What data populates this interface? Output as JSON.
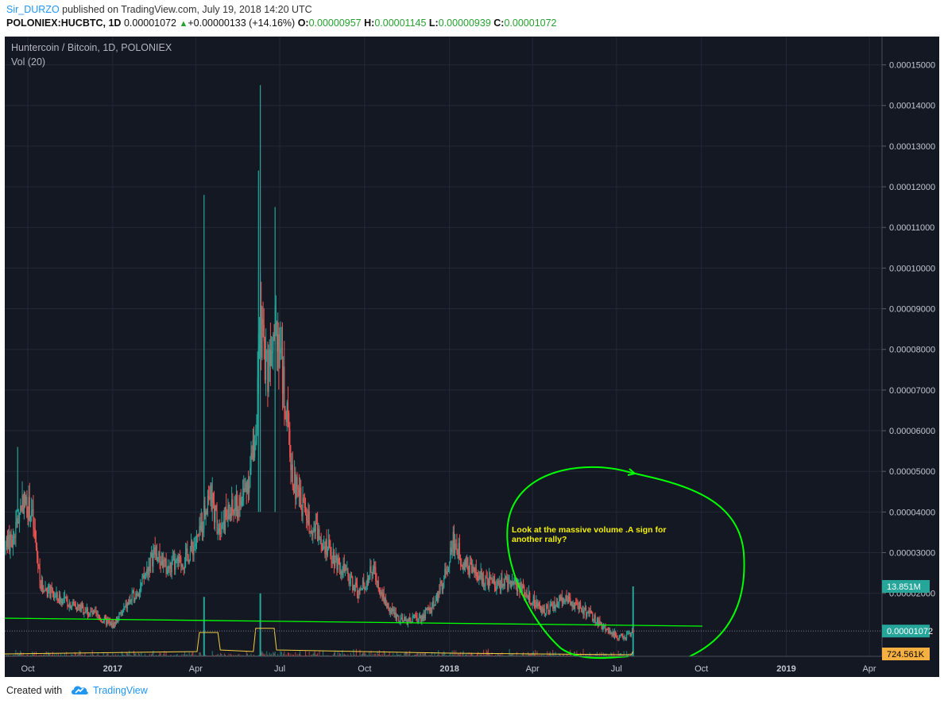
{
  "header": {
    "author": "Sir_DURZO",
    "published": "published on TradingView.com, July 19, 2018 14:20 UTC",
    "symbol": "POLONIEX:HUCBTC, 1D",
    "price": "0.00001072",
    "change": "+0.00000133 (+14.16%)",
    "o_label": "O:",
    "o": "0.00000957",
    "h_label": "H:",
    "h": "0.00001145",
    "l_label": "L:",
    "l": "0.00000939",
    "c_label": "C:",
    "c": "0.00001072",
    "up_icon": "triangle-up-icon"
  },
  "chart_data": {
    "type": "candlestick",
    "title": "Huntercoin / Bitcoin, 1D, POLONIEX",
    "indicator": "Vol (20)",
    "y_axis": {
      "ticks": [
        "0.00015000",
        "0.00014000",
        "0.00013000",
        "0.00012000",
        "0.00011000",
        "0.00010000",
        "0.00009000",
        "0.00008000",
        "0.00007000",
        "0.00006000",
        "0.00005000",
        "0.00004000",
        "0.00003000",
        "0.00002000"
      ],
      "ylim": [
        4.5e-06,
        0.000155
      ]
    },
    "x_axis": {
      "ticks": [
        "Oct",
        "2017",
        "Apr",
        "Jul",
        "Oct",
        "2018",
        "Apr",
        "Jul",
        "Oct",
        "2019",
        "Apr"
      ],
      "bold_ticks": [
        "2017",
        "2018",
        "2019"
      ]
    },
    "price_path": [
      {
        "date": "2016-09-01",
        "close": 3e-05
      },
      {
        "date": "2016-09-15",
        "close": 3.3e-05
      },
      {
        "date": "2016-09-25",
        "close": 4.3e-05
      },
      {
        "date": "2016-10-05",
        "close": 4e-05
      },
      {
        "date": "2016-10-15",
        "close": 2.2e-05
      },
      {
        "date": "2016-11-01",
        "close": 1.9e-05
      },
      {
        "date": "2016-12-01",
        "close": 1.6e-05
      },
      {
        "date": "2017-01-01",
        "close": 1.2e-05
      },
      {
        "date": "2017-02-01",
        "close": 2.2e-05
      },
      {
        "date": "2017-02-15",
        "close": 3e-05
      },
      {
        "date": "2017-03-01",
        "close": 2.6e-05
      },
      {
        "date": "2017-03-20",
        "close": 2.8e-05
      },
      {
        "date": "2017-04-05",
        "close": 3.4e-05
      },
      {
        "date": "2017-04-15",
        "close": 4.5e-05
      },
      {
        "date": "2017-04-25",
        "close": 3.7e-05
      },
      {
        "date": "2017-05-05",
        "close": 3.9e-05
      },
      {
        "date": "2017-05-20",
        "close": 4.2e-05
      },
      {
        "date": "2017-05-30",
        "close": 5e-05
      },
      {
        "date": "2017-06-05",
        "close": 6e-05
      },
      {
        "date": "2017-06-10",
        "close": 8.5e-05
      },
      {
        "date": "2017-06-18",
        "close": 7.5e-05
      },
      {
        "date": "2017-06-25",
        "close": 9e-05
      },
      {
        "date": "2017-07-01",
        "close": 8e-05
      },
      {
        "date": "2017-07-08",
        "close": 6.5e-05
      },
      {
        "date": "2017-07-15",
        "close": 4.8e-05
      },
      {
        "date": "2017-08-01",
        "close": 3.8e-05
      },
      {
        "date": "2017-08-20",
        "close": 3.2e-05
      },
      {
        "date": "2017-09-10",
        "close": 2.5e-05
      },
      {
        "date": "2017-09-25",
        "close": 2e-05
      },
      {
        "date": "2017-10-10",
        "close": 2.6e-05
      },
      {
        "date": "2017-10-25",
        "close": 1.7e-05
      },
      {
        "date": "2017-11-10",
        "close": 1.3e-05
      },
      {
        "date": "2017-12-01",
        "close": 1.4e-05
      },
      {
        "date": "2017-12-15",
        "close": 1.7e-05
      },
      {
        "date": "2017-12-28",
        "close": 2.5e-05
      },
      {
        "date": "2018-01-05",
        "close": 3.3e-05
      },
      {
        "date": "2018-01-15",
        "close": 2.8e-05
      },
      {
        "date": "2018-02-01",
        "close": 2.4e-05
      },
      {
        "date": "2018-02-20",
        "close": 2.2e-05
      },
      {
        "date": "2018-03-10",
        "close": 2.3e-05
      },
      {
        "date": "2018-03-25",
        "close": 2e-05
      },
      {
        "date": "2018-04-10",
        "close": 1.6e-05
      },
      {
        "date": "2018-04-25",
        "close": 1.7e-05
      },
      {
        "date": "2018-05-05",
        "close": 1.9e-05
      },
      {
        "date": "2018-05-20",
        "close": 1.7e-05
      },
      {
        "date": "2018-06-05",
        "close": 1.4e-05
      },
      {
        "date": "2018-06-20",
        "close": 1.1e-05
      },
      {
        "date": "2018-07-05",
        "close": 9.3e-06
      },
      {
        "date": "2018-07-15",
        "close": 9.6e-06
      },
      {
        "date": "2018-07-19",
        "close": 1.072e-05
      }
    ],
    "spike_highs": [
      {
        "date": "2017-04-10",
        "high": 0.000118
      },
      {
        "date": "2017-06-08",
        "high": 0.000124
      },
      {
        "date": "2017-06-10",
        "high": 0.000145
      },
      {
        "date": "2017-06-26",
        "high": 0.000115
      },
      {
        "date": "2016-09-20",
        "high": 5.6e-05
      }
    ],
    "volume": {
      "label": "Vol (20)",
      "spikes": [
        {
          "date": "2017-04-10",
          "rel": 0.85
        },
        {
          "date": "2017-06-10",
          "rel": 0.9
        },
        {
          "date": "2018-07-19",
          "rel": 1.0
        }
      ],
      "ma_plateaus": [
        {
          "start": "2017-04-05",
          "end": "2017-04-25",
          "rel": 0.5
        },
        {
          "start": "2017-06-05",
          "end": "2017-06-25",
          "rel": 0.6
        }
      ]
    },
    "price_labels": {
      "volume_max": "13.851M",
      "last_price": "0.00001072",
      "volume_avg": "724.561K"
    },
    "annotation": {
      "text_line1": "Look at the massive volume .A sign for",
      "text_line2": "another rally?"
    },
    "colors": {
      "background": "#141823",
      "up": "#26a69a",
      "down": "#ef5350",
      "annotation": "#00ff00",
      "volume_ma": "#f4d03f",
      "label_green": "#26a69a",
      "label_orange": "#f5b041"
    }
  },
  "footer": {
    "created_with": "Created with",
    "brand": "TradingView",
    "logo_icon": "tradingview-cloud-icon"
  }
}
